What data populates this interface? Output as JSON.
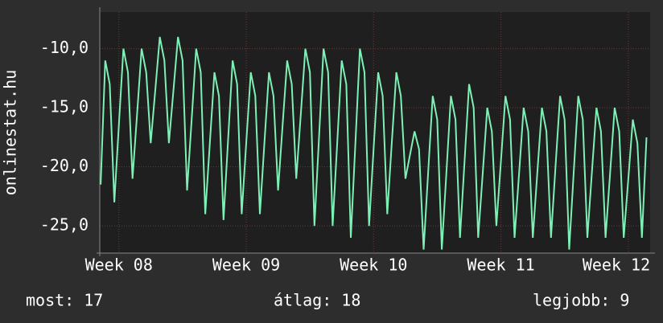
{
  "chart_data": {
    "type": "line",
    "y_label": "onlinestat.hu",
    "color": "#7df0b5",
    "grid": true,
    "ylim": [
      -27.3,
      -6.9
    ],
    "yticks": [
      {
        "value": -10,
        "label": "-10,0"
      },
      {
        "value": -15,
        "label": "-15,0"
      },
      {
        "value": -20,
        "label": "-20,0"
      },
      {
        "value": -25,
        "label": "-25,0"
      }
    ],
    "xlim": [
      -0.2,
      120.8
    ],
    "xticks": [
      {
        "value": 4,
        "label": "Week 08"
      },
      {
        "value": 32,
        "label": "Week 09"
      },
      {
        "value": 60,
        "label": "Week 10"
      },
      {
        "value": 88,
        "label": "Week 11"
      },
      {
        "value": 116,
        "label": "Week 12"
      }
    ],
    "values": [
      -21.5,
      -11,
      -13,
      -23,
      -16.5,
      -10,
      -12,
      -21,
      -15.5,
      -10,
      -12,
      -18,
      -13.5,
      -9,
      -11,
      -18,
      -13.5,
      -9,
      -11,
      -22,
      -16,
      -10,
      -12,
      -24,
      -18,
      -12,
      -14,
      -24.5,
      -17.8,
      -11,
      -13,
      -24,
      -18,
      -12,
      -14,
      -24,
      -18,
      -12,
      -14,
      -22,
      -16.5,
      -11,
      -13,
      -21,
      -15.5,
      -10,
      -12,
      -25,
      -17.5,
      -10,
      -12,
      -25,
      -18,
      -11,
      -13,
      -26,
      -18,
      -10,
      -12,
      -25,
      -18.5,
      -12,
      -14,
      -24,
      -18,
      -12,
      -14,
      -21,
      -19,
      -17,
      -18.5,
      -27,
      -20.5,
      -14,
      -16,
      -27,
      -20.5,
      -14,
      -16,
      -26,
      -19.5,
      -13,
      -15,
      -26,
      -20.5,
      -15,
      -17,
      -25,
      -19.5,
      -14,
      -16,
      -26,
      -20.5,
      -15,
      -17,
      -26,
      -20.5,
      -15,
      -17,
      -26,
      -20,
      -14,
      -16,
      -27,
      -20.5,
      -14,
      -16,
      -26,
      -20.5,
      -15,
      -17,
      -26,
      -20.5,
      -15,
      -17,
      -26,
      -21,
      -16,
      -18,
      -26,
      -17.5
    ],
    "footer": {
      "current": "most: 17",
      "average": "átlag: 18",
      "best": "legjobb: 9"
    }
  }
}
